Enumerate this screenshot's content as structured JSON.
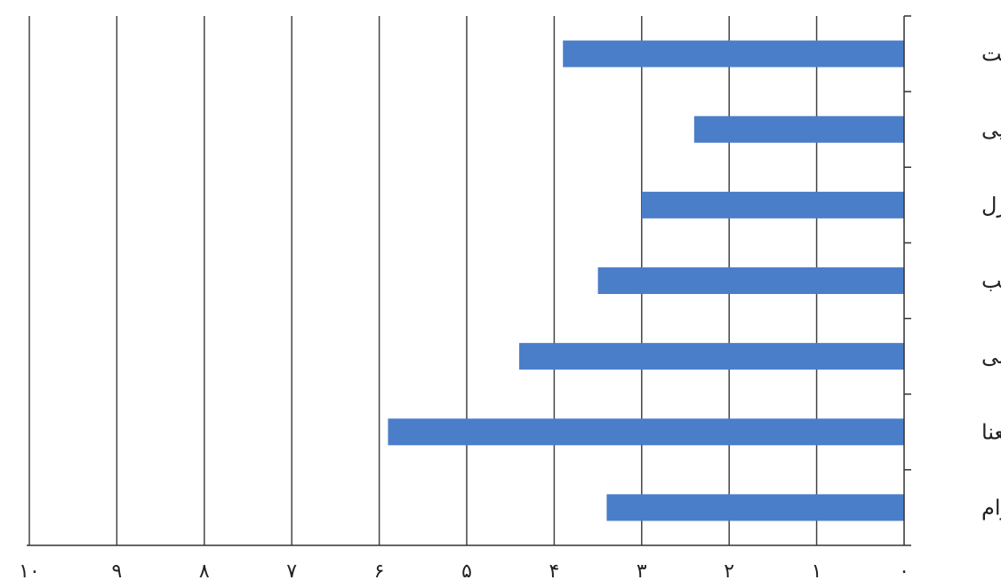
{
  "chart_data": {
    "type": "bar",
    "orientation": "horizontal",
    "x_direction": "right-to-left",
    "categories": [
      "عدالت",
      "کارایی",
      "کنترل",
      "تناسب",
      "دسترسی",
      "معنا",
      "دوام"
    ],
    "values": [
      3.9,
      2.4,
      3.0,
      3.5,
      4.4,
      5.9,
      3.4
    ],
    "xlim": [
      0,
      10
    ],
    "xticks": [
      "۰",
      "۱",
      "۲",
      "۳",
      "۴",
      "۵",
      "۶",
      "۷",
      "۸",
      "۹",
      "۱۰"
    ],
    "grid": true,
    "bar_color": "#4a7ec9"
  }
}
